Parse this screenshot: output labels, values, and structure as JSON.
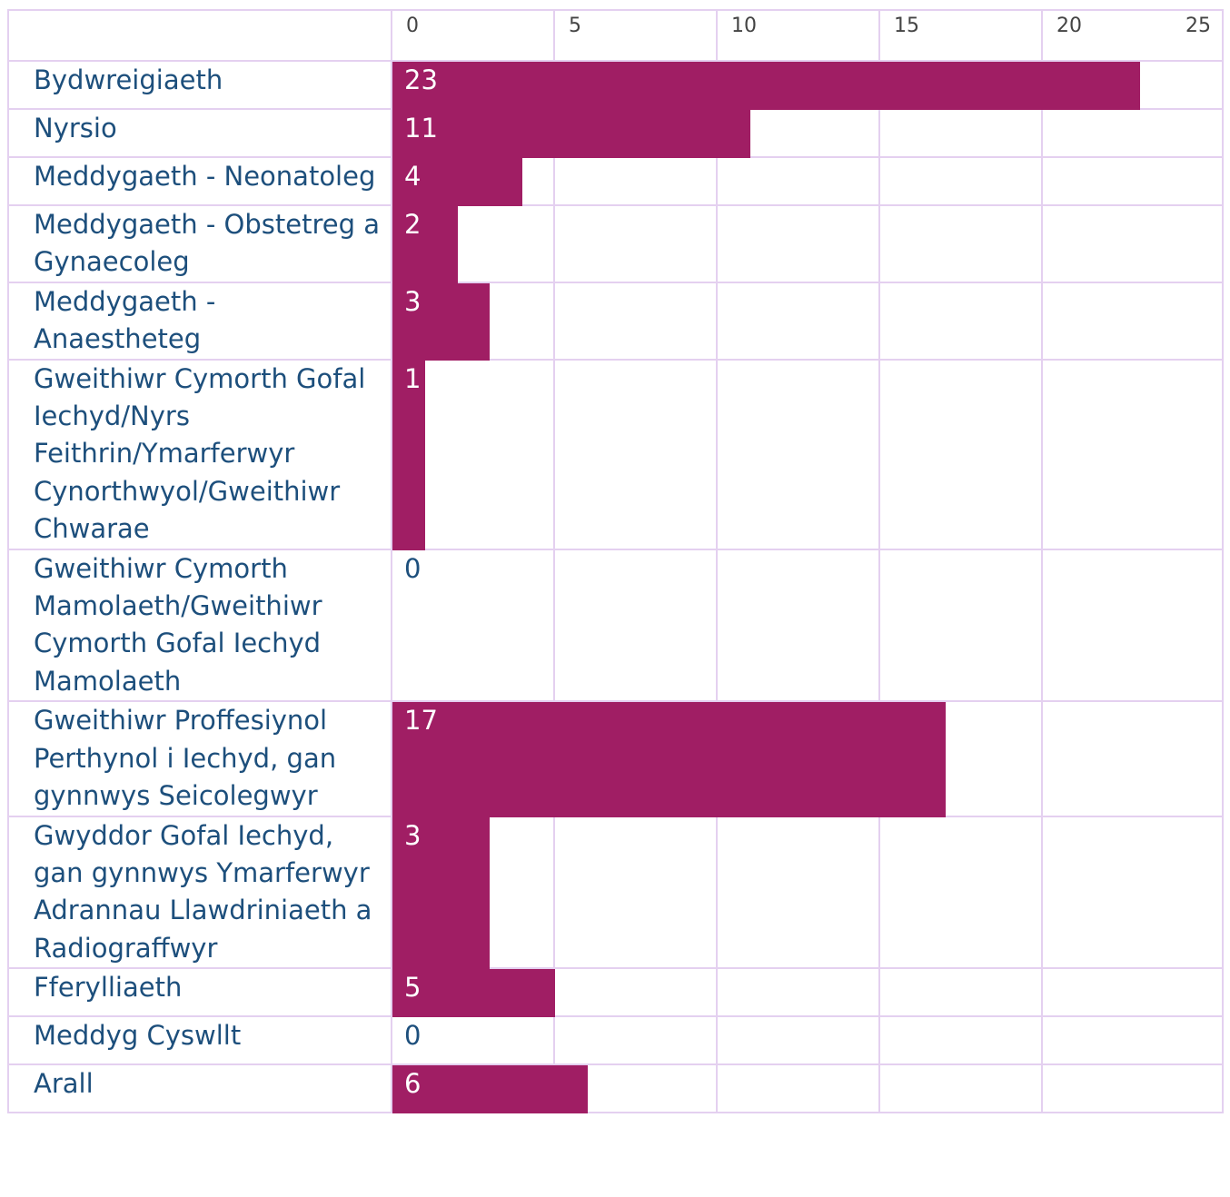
{
  "chart_data": {
    "type": "bar",
    "orientation": "horizontal",
    "categories": [
      "Bydwreigiaeth",
      "Nyrsio",
      "Meddygaeth - Neonatoleg",
      "Meddygaeth - Obstetreg a Gynaecoleg",
      "Meddygaeth - Anaestheteg",
      "Gweithiwr Cymorth Gofal Iechyd/Nyrs Feithrin/Ymarferwyr Cynorthwyol/Gweithiwr Chwarae",
      "Gweithiwr Cymorth Mamolaeth/Gweithiwr Cymorth Gofal Iechyd Mamolaeth",
      "Gweithiwr Proffesiynol Perthynol i Iechyd, gan gynnwys Seicolegwyr",
      "Gwyddor Gofal Iechyd, gan gynnwys Ymarferwyr Adrannau Llawdriniaeth a Radiograffwyr",
      "Fferylliaeth",
      "Meddyg Cyswllt",
      "Arall"
    ],
    "values": [
      23,
      11,
      4,
      2,
      3,
      1,
      0,
      17,
      3,
      5,
      0,
      6
    ],
    "color": "#a01e64",
    "xlim": [
      0,
      25
    ],
    "xticks": [
      0,
      5,
      10,
      15,
      20,
      25
    ],
    "grid": true
  }
}
